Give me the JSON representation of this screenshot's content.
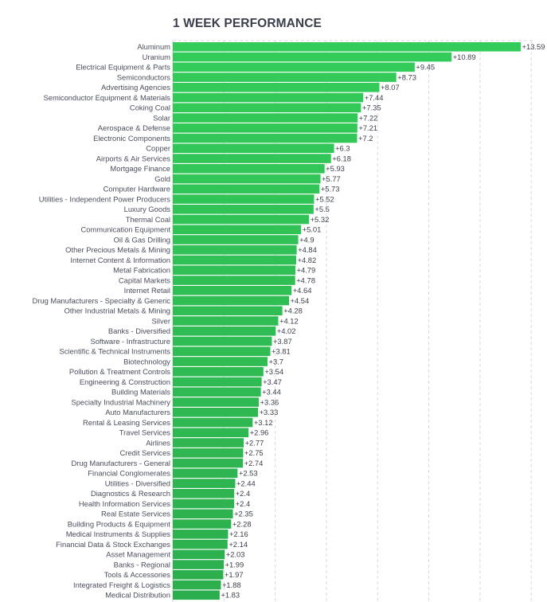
{
  "chart_data": {
    "type": "bar",
    "orientation": "horizontal",
    "title": "1 WEEK PERFORMANCE",
    "xlabel": "",
    "ylabel": "",
    "xlim": [
      0,
      14
    ],
    "grid": true,
    "bar_color": "#33cc5a",
    "value_prefix": "+",
    "categories": [
      "Aluminum",
      "Uranium",
      "Electrical Equipment & Parts",
      "Semiconductors",
      "Advertising Agencies",
      "Semiconductor Equipment & Materials",
      "Coking Coal",
      "Solar",
      "Aerospace & Defense",
      "Electronic Components",
      "Copper",
      "Airports & Air Services",
      "Mortgage Finance",
      "Gold",
      "Computer Hardware",
      "Utilities - Independent Power Producers",
      "Luxury Goods",
      "Thermal Coal",
      "Communication Equipment",
      "Oil & Gas Drilling",
      "Other Precious Metals & Mining",
      "Internet Content & Information",
      "Metal Fabrication",
      "Capital Markets",
      "Internet Retail",
      "Drug Manufacturers - Specialty & Generic",
      "Other Industrial Metals & Mining",
      "Silver",
      "Banks - Diversified",
      "Software - Infrastructure",
      "Scientific & Technical Instruments",
      "Biotechnology",
      "Pollution & Treatment Controls",
      "Engineering & Construction",
      "Building Materials",
      "Specialty Industrial Machinery",
      "Auto Manufacturers",
      "Rental & Leasing Services",
      "Travel Services",
      "Airlines",
      "Credit Services",
      "Drug Manufacturers - General",
      "Financial Conglomerates",
      "Utilities - Diversified",
      "Diagnostics & Research",
      "Health Information Services",
      "Real Estate Services",
      "Building Products & Equipment",
      "Medical Instruments & Supplies",
      "Financial Data & Stock Exchanges",
      "Asset Management",
      "Banks - Regional",
      "Tools & Accessories",
      "Integrated Freight & Logistics",
      "Medical Distribution"
    ],
    "values": [
      13.59,
      10.89,
      9.45,
      8.73,
      8.07,
      7.44,
      7.35,
      7.22,
      7.21,
      7.2,
      6.3,
      6.18,
      5.93,
      5.77,
      5.73,
      5.52,
      5.5,
      5.32,
      5.01,
      4.9,
      4.84,
      4.82,
      4.79,
      4.78,
      4.64,
      4.54,
      4.28,
      4.12,
      4.02,
      3.87,
      3.81,
      3.7,
      3.54,
      3.47,
      3.44,
      3.36,
      3.33,
      3.12,
      2.96,
      2.77,
      2.75,
      2.74,
      2.53,
      2.44,
      2.4,
      2.4,
      2.35,
      2.28,
      2.16,
      2.14,
      2.03,
      1.99,
      1.97,
      1.88,
      1.83
    ]
  }
}
